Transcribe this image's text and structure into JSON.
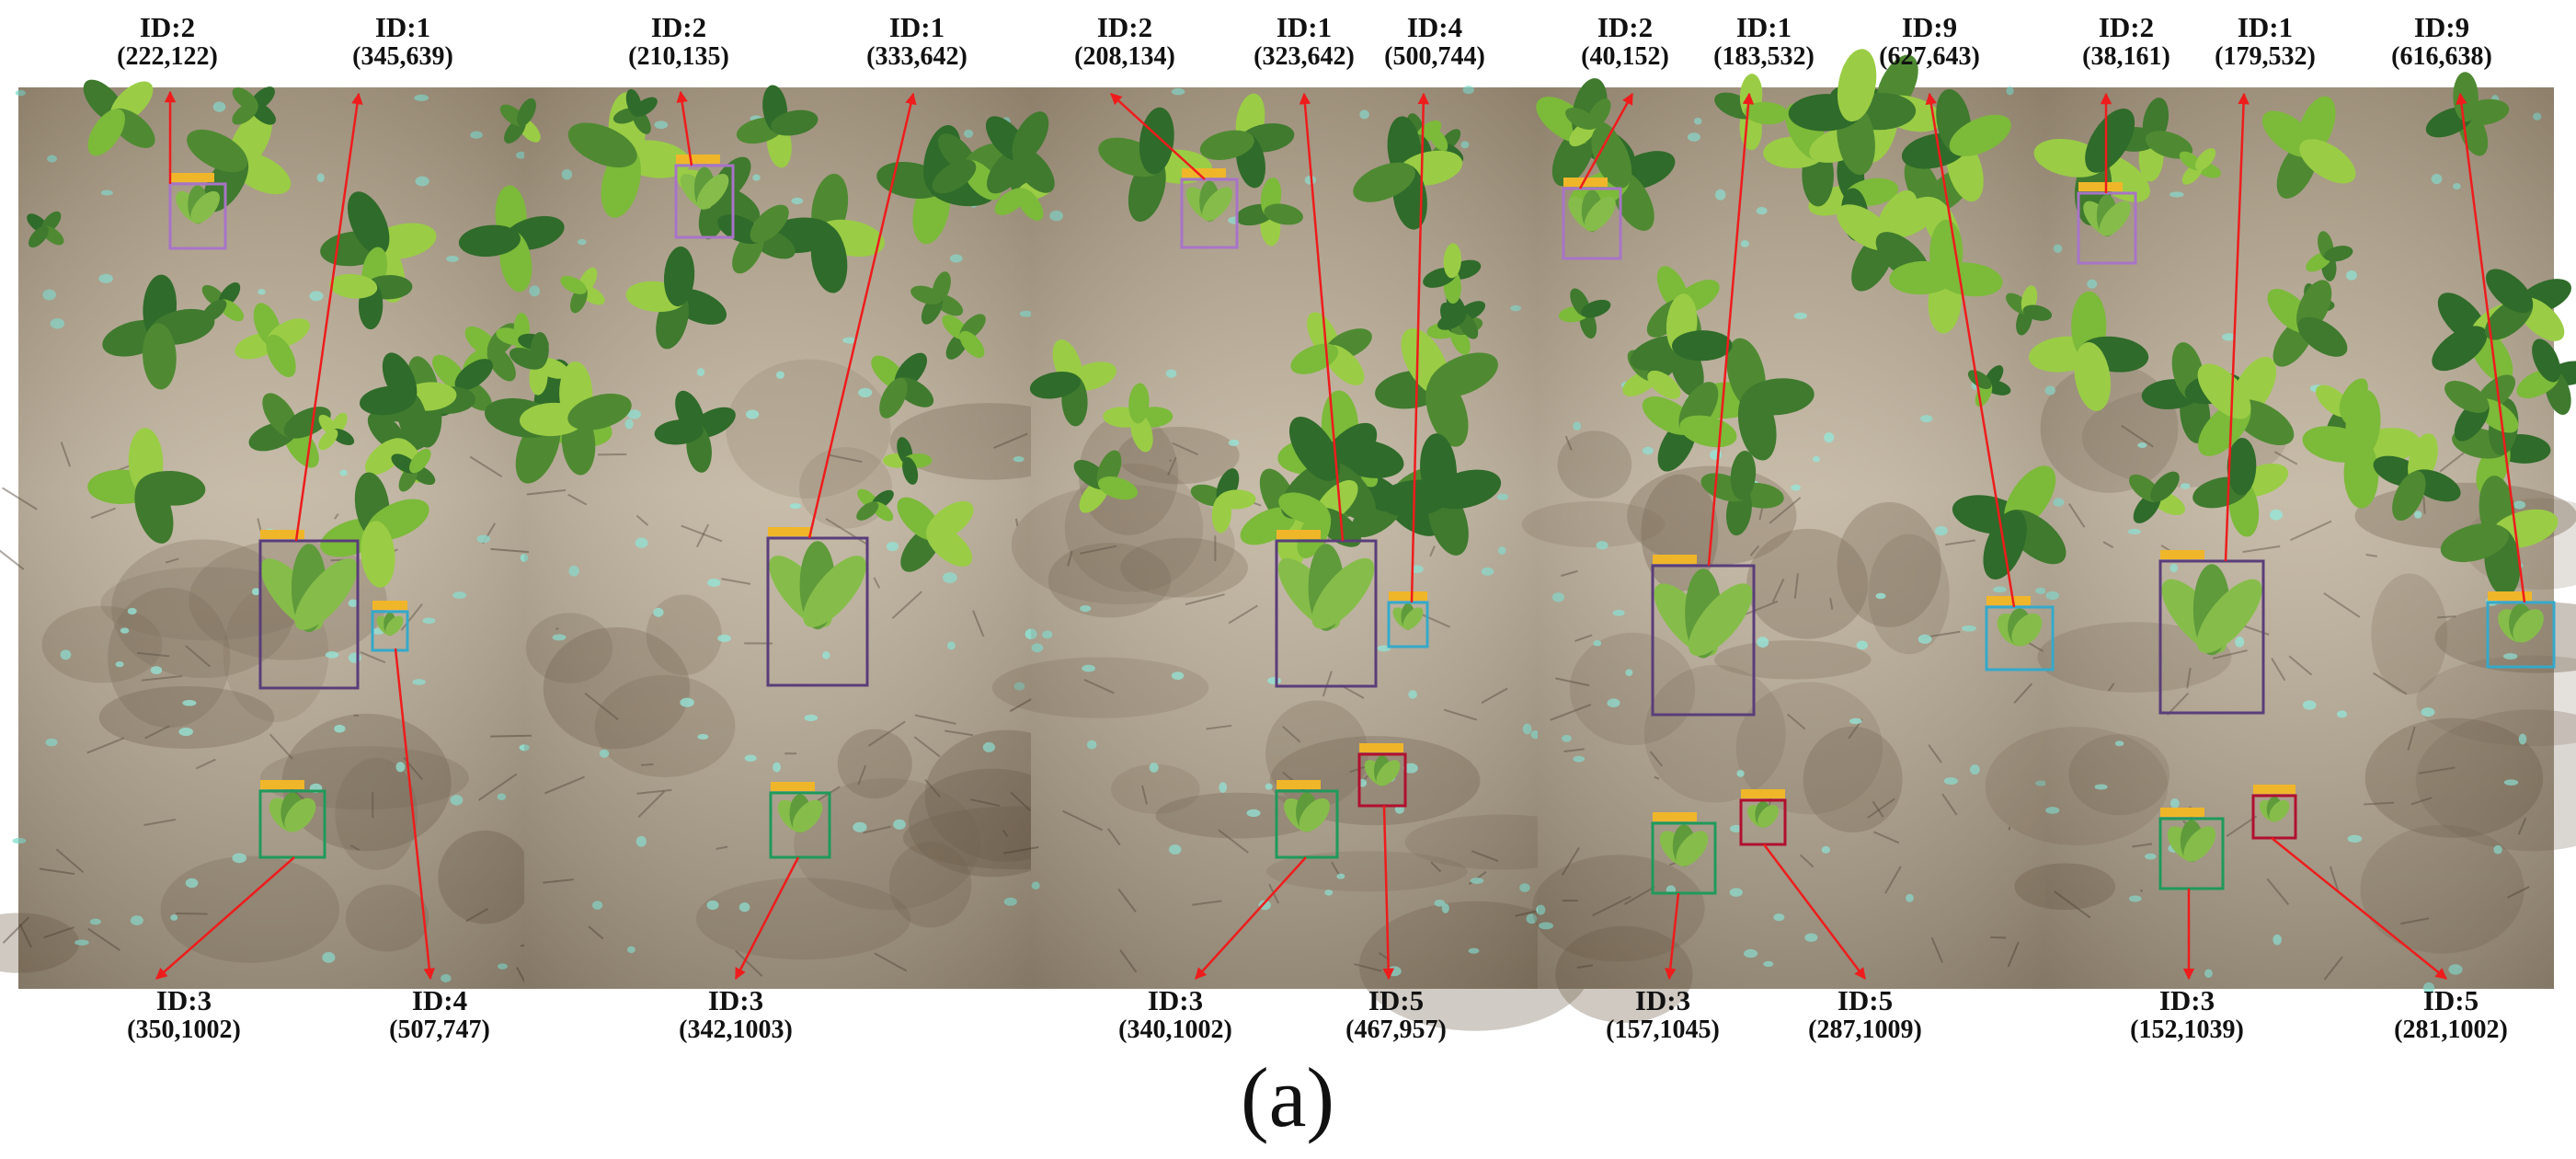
{
  "caption": "(a)",
  "colors": {
    "arrow": "#ee1c1c",
    "soil": "#b9ab96",
    "leaf": "#4f8a32",
    "box_purple_small": "#a874c8",
    "box_indigo": "#5a3d7a",
    "box_cyan": "#35a9c9",
    "box_green": "#1f9a5a",
    "box_crimson": "#b0102e"
  },
  "panels": [
    {
      "top": [
        {
          "id": "ID:2",
          "coord": "(222,122)"
        },
        {
          "id": "ID:1",
          "coord": "(345,639)"
        }
      ],
      "bottom": [
        {
          "id": "ID:3",
          "coord": "(350,1002)"
        },
        {
          "id": "ID:4",
          "coord": "(507,747)"
        }
      ]
    },
    {
      "top": [
        {
          "id": "ID:2",
          "coord": "(210,135)"
        },
        {
          "id": "ID:1",
          "coord": "(333,642)"
        }
      ],
      "bottom": [
        {
          "id": "ID:3",
          "coord": "(342,1003)"
        }
      ]
    },
    {
      "top": [
        {
          "id": "ID:2",
          "coord": "(208,134)"
        },
        {
          "id": "ID:1",
          "coord": "(323,642)"
        },
        {
          "id": "ID:4",
          "coord": "(500,744)"
        }
      ],
      "bottom": [
        {
          "id": "ID:3",
          "coord": "(340,1002)"
        },
        {
          "id": "ID:5",
          "coord": "(467,957)"
        }
      ]
    },
    {
      "top": [
        {
          "id": "ID:2",
          "coord": "(40,152)"
        },
        {
          "id": "ID:1",
          "coord": "(183,532)"
        },
        {
          "id": "ID:9",
          "coord": "(627,643)"
        }
      ],
      "bottom": [
        {
          "id": "ID:3",
          "coord": "(157,1045)"
        },
        {
          "id": "ID:5",
          "coord": "(287,1009)"
        }
      ]
    },
    {
      "top": [
        {
          "id": "ID:2",
          "coord": "(38,161)"
        },
        {
          "id": "ID:1",
          "coord": "(179,532)"
        },
        {
          "id": "ID:9",
          "coord": "(616,638)"
        }
      ],
      "bottom": [
        {
          "id": "ID:3",
          "coord": "(152,1039)"
        },
        {
          "id": "ID:5",
          "coord": "(281,1002)"
        }
      ]
    }
  ]
}
